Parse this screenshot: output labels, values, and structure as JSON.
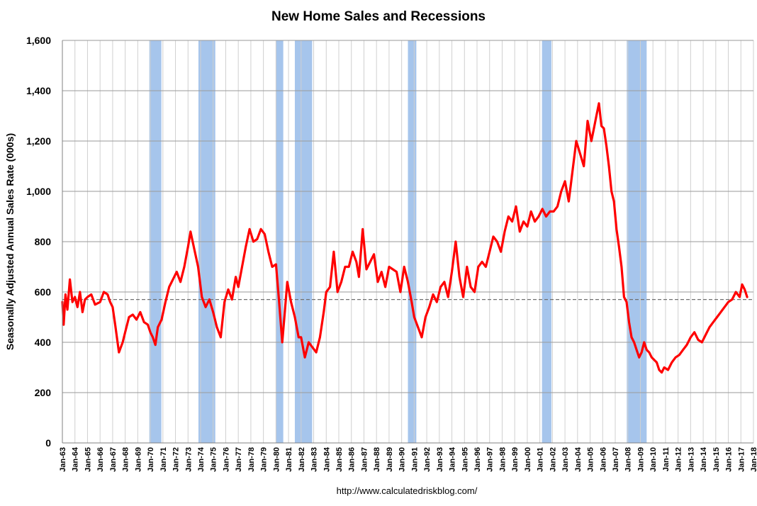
{
  "chart_data": {
    "type": "line",
    "title": "New Home Sales and Recessions",
    "ylabel": "Seasonally Adjusted Annual Sales Rate (000s)",
    "xlabel": "",
    "source": "http://www.calculatedriskblog.com/",
    "ylim": [
      0,
      1600
    ],
    "yticks": [
      "0",
      "200",
      "400",
      "600",
      "800",
      "1,000",
      "1,200",
      "1,400",
      "1,600"
    ],
    "ytick_values": [
      0,
      200,
      400,
      600,
      800,
      1000,
      1200,
      1400,
      1600
    ],
    "x_range": [
      1963,
      2018
    ],
    "x_tick_labels": [
      "Jan-63",
      "Jan-64",
      "Jan-65",
      "Jan-66",
      "Jan-67",
      "Jan-68",
      "Jan-69",
      "Jan-70",
      "Jan-71",
      "Jan-72",
      "Jan-73",
      "Jan-74",
      "Jan-75",
      "Jan-76",
      "Jan-77",
      "Jan-78",
      "Jan-79",
      "Jan-80",
      "Jan-81",
      "Jan-82",
      "Jan-83",
      "Jan-84",
      "Jan-85",
      "Jan-86",
      "Jan-87",
      "Jan-88",
      "Jan-89",
      "Jan-90",
      "Jan-91",
      "Jan-92",
      "Jan-93",
      "Jan-94",
      "Jan-95",
      "Jan-96",
      "Jan-97",
      "Jan-98",
      "Jan-99",
      "Jan-00",
      "Jan-01",
      "Jan-02",
      "Jan-03",
      "Jan-04",
      "Jan-05",
      "Jan-06",
      "Jan-07",
      "Jan-08",
      "Jan-09",
      "Jan-10",
      "Jan-11",
      "Jan-12",
      "Jan-13",
      "Jan-14",
      "Jan-15",
      "Jan-16",
      "Jan-17",
      "Jan-18"
    ],
    "grid": true,
    "reference_line": {
      "value": 570,
      "style": "dashed"
    },
    "recessions": [
      {
        "start": 1969.92,
        "end": 1970.88
      },
      {
        "start": 1973.83,
        "end": 1975.17
      },
      {
        "start": 1980.0,
        "end": 1980.58
      },
      {
        "start": 1981.5,
        "end": 1982.88
      },
      {
        "start": 1990.5,
        "end": 1991.17
      },
      {
        "start": 2001.17,
        "end": 2001.92
      },
      {
        "start": 2007.92,
        "end": 2009.5
      }
    ],
    "series": [
      {
        "color": "#ff0000",
        "x": [
          1963.0,
          1963.1,
          1963.25,
          1963.4,
          1963.6,
          1963.8,
          1964.0,
          1964.2,
          1964.4,
          1964.6,
          1964.8,
          1965.0,
          1965.3,
          1965.6,
          1966.0,
          1966.3,
          1966.6,
          1966.8,
          1967.0,
          1967.2,
          1967.5,
          1967.8,
          1968.0,
          1968.3,
          1968.6,
          1968.9,
          1969.2,
          1969.5,
          1969.8,
          1970.0,
          1970.2,
          1970.4,
          1970.6,
          1970.9,
          1971.2,
          1971.5,
          1971.8,
          1972.1,
          1972.4,
          1972.7,
          1973.0,
          1973.2,
          1973.5,
          1973.8,
          1974.1,
          1974.4,
          1974.7,
          1975.0,
          1975.3,
          1975.6,
          1975.9,
          1976.2,
          1976.5,
          1976.8,
          1977.0,
          1977.3,
          1977.6,
          1977.9,
          1978.2,
          1978.5,
          1978.8,
          1979.1,
          1979.4,
          1979.7,
          1980.0,
          1980.25,
          1980.5,
          1980.7,
          1980.9,
          1981.2,
          1981.5,
          1981.8,
          1982.0,
          1982.3,
          1982.6,
          1982.9,
          1983.2,
          1983.5,
          1983.8,
          1984.0,
          1984.3,
          1984.6,
          1984.9,
          1985.2,
          1985.5,
          1985.8,
          1986.1,
          1986.4,
          1986.6,
          1986.9,
          1987.2,
          1987.5,
          1987.8,
          1988.1,
          1988.4,
          1988.7,
          1989.0,
          1989.3,
          1989.6,
          1989.9,
          1990.2,
          1990.5,
          1990.8,
          1991.0,
          1991.3,
          1991.6,
          1991.9,
          1992.2,
          1992.5,
          1992.8,
          1993.1,
          1993.4,
          1993.7,
          1994.0,
          1994.3,
          1994.6,
          1994.9,
          1995.2,
          1995.5,
          1995.8,
          1996.1,
          1996.4,
          1996.7,
          1997.0,
          1997.3,
          1997.6,
          1997.9,
          1998.2,
          1998.5,
          1998.8,
          1999.1,
          1999.4,
          1999.7,
          2000.0,
          2000.3,
          2000.6,
          2000.9,
          2001.2,
          2001.5,
          2001.8,
          2002.1,
          2002.4,
          2002.7,
          2003.0,
          2003.3,
          2003.6,
          2003.9,
          2004.2,
          2004.5,
          2004.8,
          2005.1,
          2005.3,
          2005.5,
          2005.7,
          2005.9,
          2006.1,
          2006.3,
          2006.5,
          2006.7,
          2006.9,
          2007.1,
          2007.3,
          2007.5,
          2007.7,
          2007.9,
          2008.1,
          2008.3,
          2008.5,
          2008.7,
          2008.9,
          2009.1,
          2009.3,
          2009.5,
          2009.7,
          2009.9,
          2010.1,
          2010.3,
          2010.5,
          2010.7,
          2010.9,
          2011.2,
          2011.5,
          2011.8,
          2012.1,
          2012.4,
          2012.7,
          2013.0,
          2013.3,
          2013.6,
          2013.9,
          2014.2,
          2014.5,
          2014.8,
          2015.1,
          2015.4,
          2015.7,
          2016.0,
          2016.3,
          2016.6,
          2016.9,
          2017.1,
          2017.3,
          2017.5
        ],
        "y": [
          560,
          470,
          590,
          530,
          650,
          560,
          580,
          540,
          600,
          520,
          570,
          580,
          590,
          550,
          560,
          600,
          590,
          560,
          540,
          470,
          360,
          400,
          440,
          500,
          510,
          490,
          520,
          480,
          470,
          440,
          420,
          390,
          460,
          490,
          560,
          620,
          650,
          680,
          640,
          700,
          780,
          840,
          770,
          700,
          580,
          540,
          570,
          520,
          460,
          420,
          560,
          610,
          570,
          660,
          620,
          700,
          780,
          850,
          800,
          810,
          850,
          830,
          760,
          700,
          710,
          560,
          400,
          520,
          640,
          560,
          500,
          420,
          420,
          340,
          400,
          380,
          360,
          420,
          520,
          600,
          620,
          760,
          600,
          640,
          700,
          700,
          760,
          720,
          660,
          850,
          690,
          720,
          750,
          640,
          680,
          620,
          700,
          690,
          680,
          600,
          700,
          640,
          560,
          500,
          460,
          420,
          500,
          540,
          590,
          560,
          620,
          640,
          580,
          680,
          800,
          660,
          580,
          700,
          620,
          600,
          700,
          720,
          700,
          760,
          820,
          800,
          760,
          840,
          900,
          880,
          940,
          840,
          880,
          860,
          920,
          880,
          900,
          930,
          900,
          920,
          920,
          940,
          1000,
          1040,
          960,
          1080,
          1200,
          1150,
          1100,
          1280,
          1200,
          1250,
          1300,
          1350,
          1260,
          1250,
          1180,
          1100,
          1000,
          960,
          850,
          780,
          700,
          580,
          560,
          480,
          420,
          400,
          370,
          340,
          360,
          400,
          370,
          360,
          340,
          330,
          320,
          290,
          280,
          300,
          290,
          320,
          340,
          350,
          370,
          390,
          420,
          440,
          410,
          400,
          430,
          460,
          480,
          500,
          520,
          540,
          560,
          570,
          600,
          580,
          630,
          610,
          580
        ]
      }
    ]
  }
}
